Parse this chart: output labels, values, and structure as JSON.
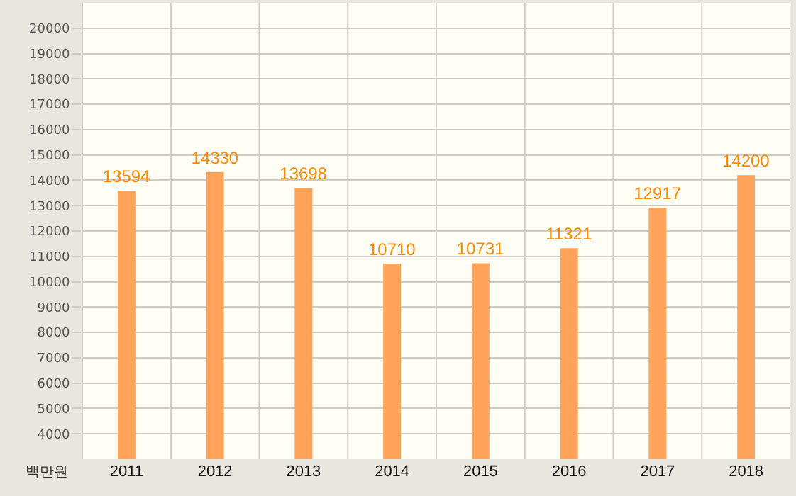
{
  "chart_data": {
    "type": "bar",
    "ylabel": "백만원",
    "categories": [
      "2011",
      "2012",
      "2013",
      "2014",
      "2015",
      "2016",
      "2017",
      "2018"
    ],
    "values": [
      13594,
      14330,
      13698,
      10710,
      10731,
      11321,
      12917,
      14200
    ],
    "color": "#ffa35a",
    "ylim": [
      3000,
      21000
    ],
    "yticks": [
      4000,
      5000,
      6000,
      7000,
      8000,
      9000,
      10000,
      11000,
      12000,
      13000,
      14000,
      15000,
      16000,
      17000,
      18000,
      19000,
      20000
    ],
    "grid": true,
    "data_labels": true,
    "legend": false
  }
}
